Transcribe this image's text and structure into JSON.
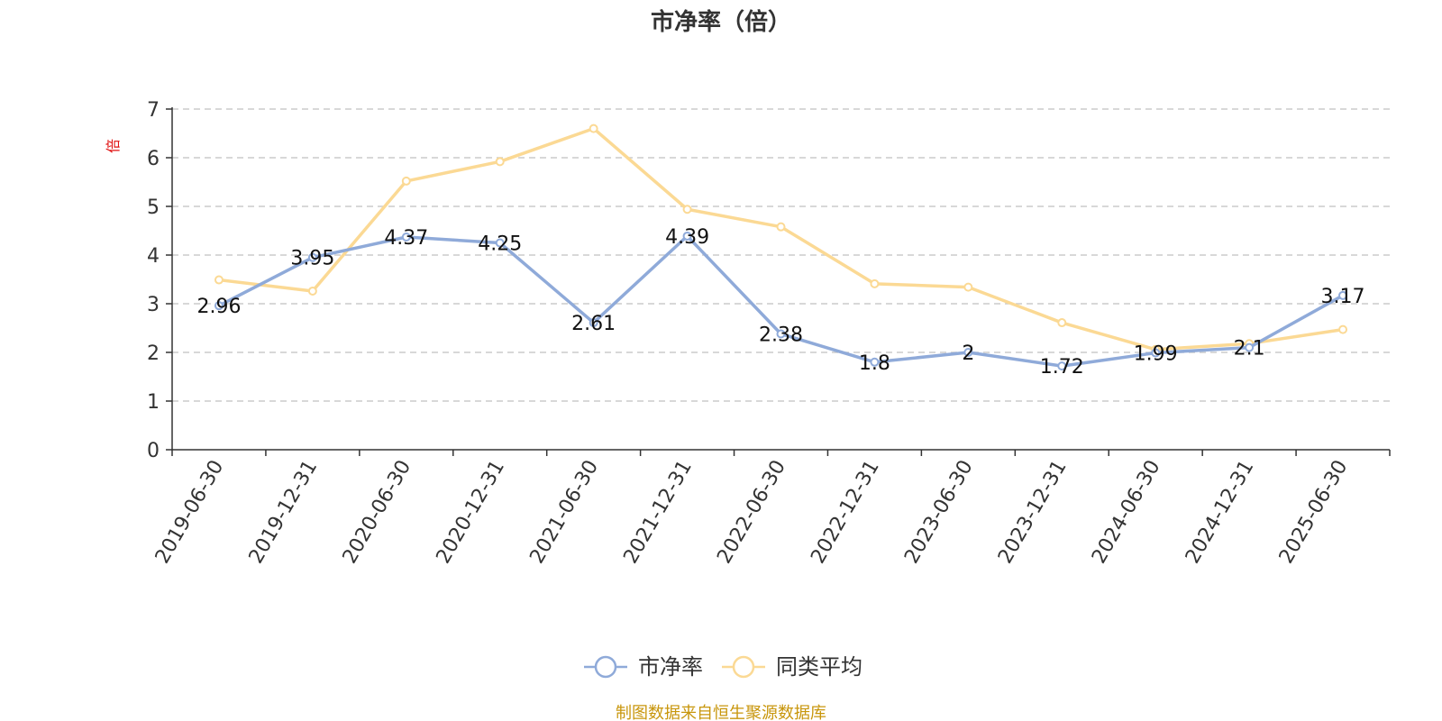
{
  "chart_data": {
    "type": "line",
    "title": "市净率（倍）",
    "ylabel": "倍",
    "ylim": [
      0,
      7
    ],
    "yticks": [
      0,
      1,
      2,
      3,
      4,
      5,
      6,
      7
    ],
    "grid": true,
    "categories": [
      "2019-06-30",
      "2019-12-31",
      "2020-06-30",
      "2020-12-31",
      "2021-06-30",
      "2021-12-31",
      "2022-06-30",
      "2022-12-31",
      "2023-06-30",
      "2023-12-31",
      "2024-06-30",
      "2024-12-31",
      "2025-06-30"
    ],
    "series": [
      {
        "name": "市净率",
        "color": "#8faad9",
        "values": [
          2.96,
          3.95,
          4.37,
          4.25,
          2.61,
          4.39,
          2.38,
          1.8,
          2,
          1.72,
          1.99,
          2.1,
          3.17
        ],
        "labels": [
          "2.96",
          "3.95",
          "4.37",
          "4.25",
          "2.61",
          "4.39",
          "2.38",
          "1.8",
          "2",
          "1.72",
          "1.99",
          "2.1",
          "3.17"
        ]
      },
      {
        "name": "同类平均",
        "color": "#fbd994",
        "values": [
          3.49,
          3.26,
          5.52,
          5.92,
          6.6,
          4.94,
          4.58,
          3.41,
          3.34,
          2.61,
          2.06,
          2.18,
          2.47
        ]
      }
    ],
    "legend_position": "bottom-center"
  },
  "source_note": "制图数据来自恒生聚源数据库"
}
